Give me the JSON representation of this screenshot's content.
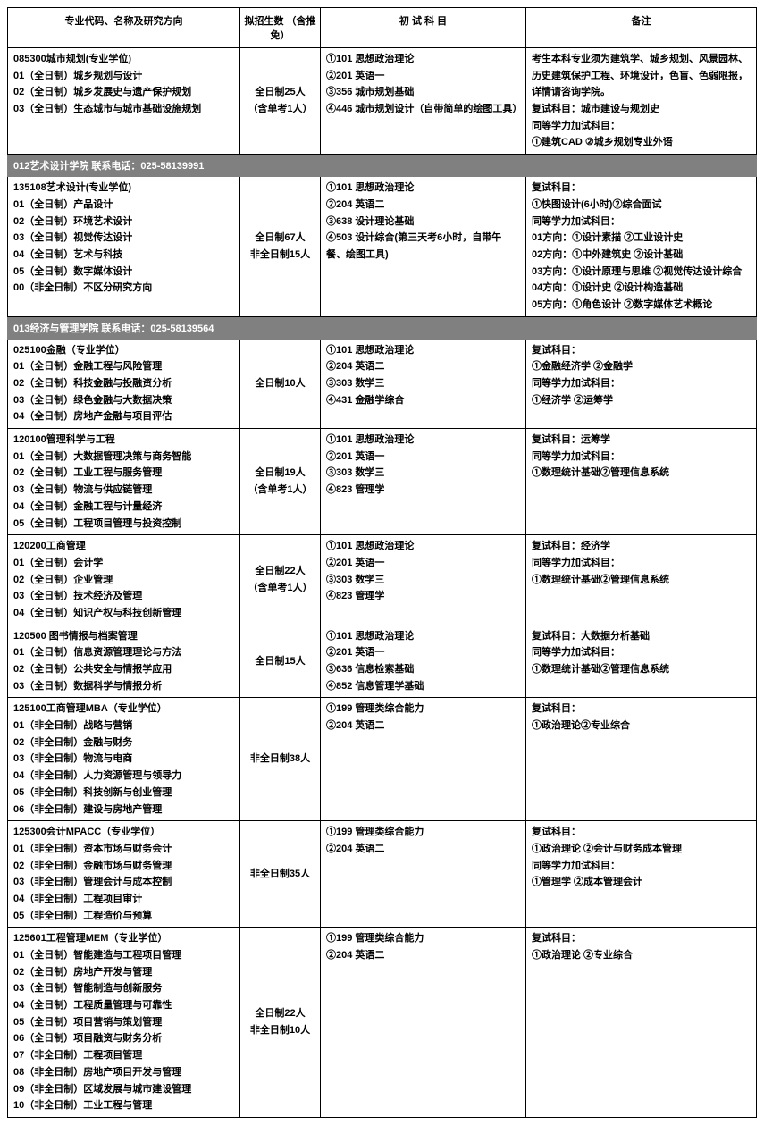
{
  "headers": {
    "major": "专业代码、名称及研究方向",
    "quota": "拟招生数\n（含推免）",
    "exam": "初 试 科 目",
    "note": "备注"
  },
  "colors": {
    "dept_bg": "#808080",
    "dept_fg": "#ffffff",
    "border": "#000000"
  },
  "sections": [
    {
      "type": "row",
      "major": [
        "085300城市规划(专业学位)",
        "01（全日制）城乡规划与设计",
        "02（全日制）城乡发展史与遗产保护规划",
        "03（全日制）生态城市与城市基础设施规划"
      ],
      "quota": [
        "全日制25人",
        "（含单考1人）"
      ],
      "exam": [
        "①101 思想政治理论",
        "②201 英语一",
        "③356 城市规划基础",
        "④446 城市规划设计（自带简单的绘图工具）"
      ],
      "note": [
        "考生本科专业须为建筑学、城乡规划、风景园林、历史建筑保护工程、环境设计，色盲、色弱限报，详情请咨询学院。",
        "复试科目：城市建设与规划史",
        "同等学力加试科目：",
        "①建筑CAD ②城乡规划专业外语"
      ]
    },
    {
      "type": "dept",
      "label": "012艺术设计学院 联系电话：025-58139991"
    },
    {
      "type": "row",
      "major": [
        "135108艺术设计(专业学位)",
        "01（全日制）产品设计",
        "02（全日制）环境艺术设计",
        "03（全日制）视觉传达设计",
        "04（全日制）艺术与科技",
        "05（全日制）数字媒体设计",
        "00（非全日制）不区分研究方向"
      ],
      "quota": [
        "全日制67人",
        "非全日制15人"
      ],
      "exam": [
        "①101 思想政治理论",
        "②204 英语二",
        "③638 设计理论基础",
        "④503 设计综合(第三天考6小时，自带午餐、绘图工具)"
      ],
      "note": [
        "复试科目：",
        "①快图设计(6小时)②综合面试",
        "同等学力加试科目：",
        "01方向：①设计素描 ②工业设计史",
        "02方向：①中外建筑史 ②设计基础",
        "03方向：①设计原理与思维 ②视觉传达设计综合",
        "04方向：①设计史 ②设计构造基础",
        "05方向：①角色设计 ②数字媒体艺术概论"
      ]
    },
    {
      "type": "dept",
      "label": "013经济与管理学院 联系电话：025-58139564"
    },
    {
      "type": "row",
      "major": [
        "025100金融（专业学位）",
        "01（全日制）金融工程与风险管理",
        "02（全日制）科技金融与投融资分析",
        "03（全日制）绿色金融与大数据决策",
        "04（全日制）房地产金融与项目评估"
      ],
      "quota": [
        "全日制10人"
      ],
      "exam": [
        "①101 思想政治理论",
        "②204 英语二",
        "③303 数学三",
        "④431 金融学综合"
      ],
      "note": [
        "复试科目：",
        "①金融经济学 ②金融学",
        "同等学力加试科目：",
        "①经济学 ②运筹学"
      ]
    },
    {
      "type": "row",
      "major": [
        "120100管理科学与工程",
        "01（全日制）大数据管理决策与商务智能",
        "02（全日制）工业工程与服务管理",
        "03（全日制）物流与供应链管理",
        "04（全日制）金融工程与计量经济",
        "05（全日制）工程项目管理与投资控制"
      ],
      "quota": [
        "全日制19人",
        "（含单考1人）"
      ],
      "exam": [
        "①101 思想政治理论",
        "②201 英语一",
        "③303 数学三",
        "④823 管理学"
      ],
      "note": [
        "复试科目：运筹学",
        "同等学力加试科目：",
        "①数理统计基础②管理信息系统"
      ]
    },
    {
      "type": "row",
      "major": [
        "120200工商管理",
        "01（全日制）会计学",
        "02（全日制）企业管理",
        "03（全日制）技术经济及管理",
        "04（全日制）知识产权与科技创新管理"
      ],
      "quota": [
        "全日制22人",
        "（含单考1人）"
      ],
      "exam": [
        "①101 思想政治理论",
        "②201 英语一",
        "③303 数学三",
        "④823 管理学"
      ],
      "note": [
        "复试科目：经济学",
        "同等学力加试科目：",
        "①数理统计基础②管理信息系统"
      ]
    },
    {
      "type": "row",
      "major": [
        "120500 图书情报与档案管理",
        "01（全日制）信息资源管理理论与方法",
        "02（全日制）公共安全与情报学应用",
        "03（全日制）数据科学与情报分析"
      ],
      "quota": [
        "全日制15人"
      ],
      "exam": [
        "①101 思想政治理论",
        "②201 英语一",
        "③636 信息检索基础",
        "④852 信息管理学基础"
      ],
      "note": [
        "复试科目：大数据分析基础",
        "同等学力加试科目：",
        "①数理统计基础②管理信息系统"
      ]
    },
    {
      "type": "row",
      "major": [
        "125100工商管理MBA（专业学位）",
        "01（非全日制）战略与营销",
        "02（非全日制）金融与财务",
        "03（非全日制）物流与电商",
        "04（非全日制）人力资源管理与领导力",
        "05（非全日制）科技创新与创业管理",
        "06（非全日制）建设与房地产管理"
      ],
      "quota": [
        "非全日制38人"
      ],
      "exam": [
        "①199 管理类综合能力",
        "②204 英语二"
      ],
      "note": [
        "复试科目：",
        "①政治理论②专业综合"
      ]
    },
    {
      "type": "row",
      "major": [
        "125300会计MPACC（专业学位）",
        "01（非全日制）资本市场与财务会计",
        "02（非全日制）金融市场与财务管理",
        "03（非全日制）管理会计与成本控制",
        "04（非全日制）工程项目审计",
        "05（非全日制）工程造价与预算"
      ],
      "quota": [
        "非全日制35人"
      ],
      "exam": [
        "①199 管理类综合能力",
        "②204 英语二"
      ],
      "note": [
        "复试科目：",
        "①政治理论 ②会计与财务成本管理",
        "同等学力加试科目：",
        "①管理学 ②成本管理会计"
      ]
    },
    {
      "type": "row",
      "major": [
        "125601工程管理MEM（专业学位）",
        "01（全日制）智能建造与工程项目管理",
        "02（全日制）房地产开发与管理",
        "03（全日制）智能制造与创新服务",
        "04（全日制）工程质量管理与可靠性",
        "05（全日制）项目营销与策划管理",
        "06（全日制）项目融资与财务分析",
        "07（非全日制）工程项目管理",
        "08（非全日制）房地产项目开发与管理",
        "09（非全日制）区域发展与城市建设管理",
        {
          "text": "10（非全日制）工业工程与管理",
          "bold": true
        }
      ],
      "quota": [
        "全日制22人",
        "非全日制10人"
      ],
      "exam": [
        "①199 管理类综合能力",
        "②204 英语二"
      ],
      "note": [
        "复试科目：",
        "①政治理论 ②专业综合"
      ]
    }
  ]
}
